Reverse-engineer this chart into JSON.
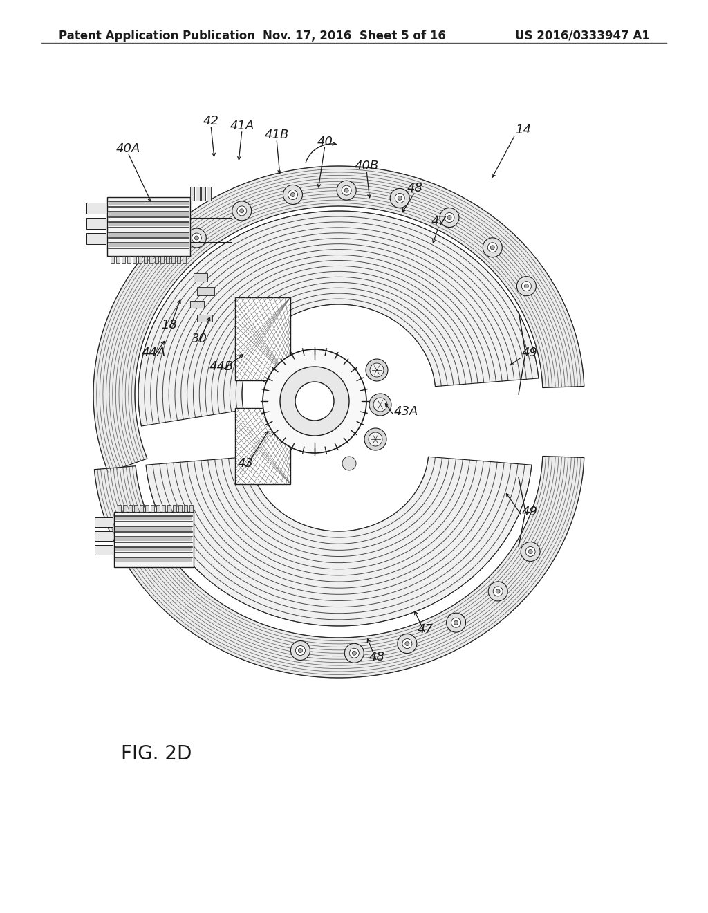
{
  "background_color": "#ffffff",
  "header_left": "Patent Application Publication",
  "header_center": "Nov. 17, 2016  Sheet 5 of 16",
  "header_right": "US 2016/0333947 A1",
  "figure_label": "FIG. 2D",
  "page_width": 10.24,
  "page_height": 13.2,
  "dpi": 100,
  "header_fontsize": 12,
  "figure_label_fontsize": 20,
  "black": "#1a1a1a",
  "gray_light": "#e8e8e8",
  "gray_mid": "#c8c8c8",
  "hatch_color": "#555555"
}
